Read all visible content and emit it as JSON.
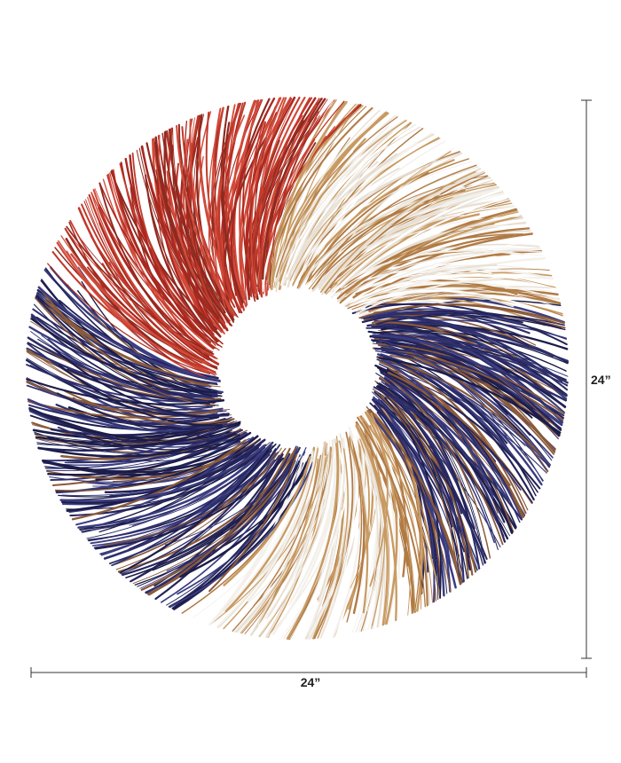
{
  "dimensions": {
    "height_label": "24”",
    "width_label": "24”"
  }
}
